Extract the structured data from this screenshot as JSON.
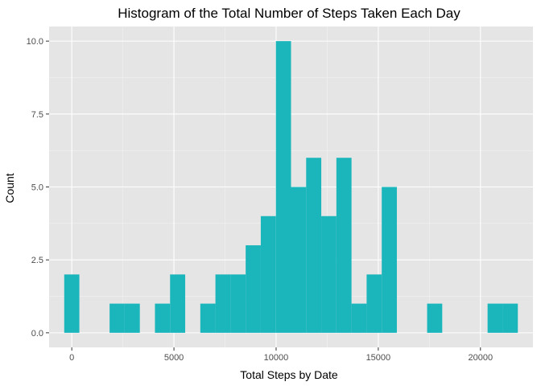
{
  "chart_data": {
    "type": "bar",
    "title": "Histogram of the Total Number of Steps Taken Each Day",
    "xlabel": "Total Steps by Date",
    "ylabel": "Count",
    "bin_width": 740,
    "bin_centers": [
      0,
      2220,
      2960,
      4440,
      5180,
      6660,
      7400,
      8140,
      8880,
      9620,
      10360,
      11100,
      11840,
      12580,
      13320,
      14060,
      14800,
      15540,
      17760,
      20720,
      21460
    ],
    "counts": [
      2,
      1,
      1,
      1,
      2,
      1,
      2,
      2,
      3,
      4,
      10,
      5,
      6,
      4,
      6,
      1,
      2,
      5,
      1,
      1,
      1
    ],
    "xlim": [
      -1110,
      22570
    ],
    "ylim": [
      -0.5,
      10.5
    ],
    "x_ticks": [
      0,
      5000,
      10000,
      15000,
      20000
    ],
    "x_tick_labels": [
      "0",
      "5000",
      "10000",
      "15000",
      "20000"
    ],
    "y_ticks": [
      0,
      2.5,
      5,
      7.5,
      10
    ],
    "y_tick_labels": [
      "0.0",
      "2.5",
      "5.0",
      "7.5",
      "10.0"
    ],
    "grid": true,
    "colors": {
      "bar": "#1bb6bb",
      "panel": "#e5e5e5",
      "grid_major": "#ffffff",
      "grid_minor": "#f2f2f2",
      "tick_text": "#4d4d4d"
    }
  }
}
